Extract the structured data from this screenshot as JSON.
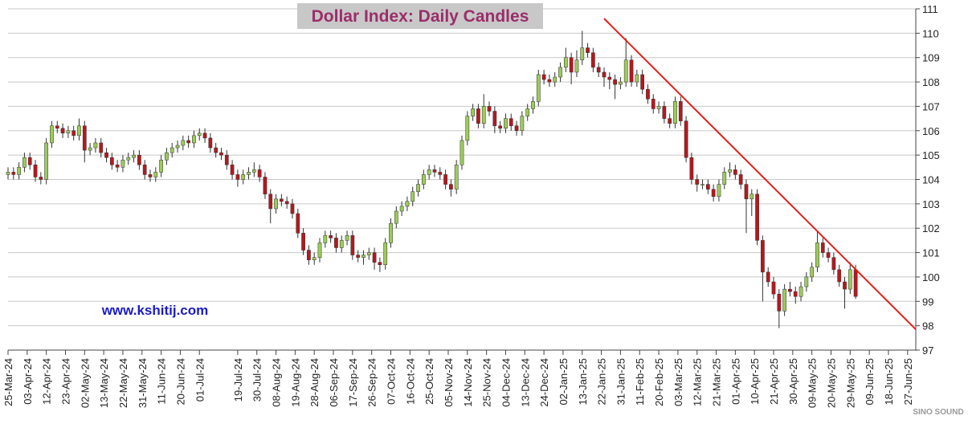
{
  "chart_data": {
    "type": "candlestick",
    "title": "Dollar Index: Daily Candles",
    "watermark": "www.kshitij.com",
    "logo": "SINO SOUND",
    "up_color": "#9ccc5a",
    "down_color": "#b5181e",
    "grid": true,
    "xlim": [
      0,
      332
    ],
    "ylim": [
      97,
      111
    ],
    "yticks": [
      97,
      98,
      99,
      100,
      101,
      102,
      103,
      104,
      105,
      106,
      107,
      108,
      109,
      110,
      111
    ],
    "xticks": [
      {
        "value": 0,
        "label": "25-Mar-24"
      },
      {
        "value": 7,
        "label": "03-Apr-24"
      },
      {
        "value": 14,
        "label": "12-Apr-24"
      },
      {
        "value": 21,
        "label": "23-Apr-24"
      },
      {
        "value": 28,
        "label": "02-May-24"
      },
      {
        "value": 35,
        "label": "13-May-24"
      },
      {
        "value": 42,
        "label": "22-May-24"
      },
      {
        "value": 49,
        "label": "31-May-24"
      },
      {
        "value": 56,
        "label": "11-Jun-24"
      },
      {
        "value": 63,
        "label": "20-Jun-24"
      },
      {
        "value": 70,
        "label": "01-Jul-24"
      },
      {
        "value": 84,
        "label": "19-Jul-24"
      },
      {
        "value": 91,
        "label": "30-Jul-24"
      },
      {
        "value": 98,
        "label": "08-Aug-24"
      },
      {
        "value": 105,
        "label": "19-Aug-24"
      },
      {
        "value": 112,
        "label": "28-Aug-24"
      },
      {
        "value": 119,
        "label": "06-Sep-24"
      },
      {
        "value": 126,
        "label": "17-Sep-24"
      },
      {
        "value": 133,
        "label": "26-Sep-24"
      },
      {
        "value": 140,
        "label": "07-Oct-24"
      },
      {
        "value": 147,
        "label": "16-Oct-24"
      },
      {
        "value": 154,
        "label": "25-Oct-24"
      },
      {
        "value": 161,
        "label": "05-Nov-24"
      },
      {
        "value": 168,
        "label": "14-Nov-24"
      },
      {
        "value": 175,
        "label": "25-Nov-24"
      },
      {
        "value": 182,
        "label": "04-Dec-24"
      },
      {
        "value": 189,
        "label": "13-Dec-24"
      },
      {
        "value": 196,
        "label": "24-Dec-24"
      },
      {
        "value": 203,
        "label": "02-Jan-25"
      },
      {
        "value": 210,
        "label": "13-Jan-25"
      },
      {
        "value": 217,
        "label": "22-Jan-25"
      },
      {
        "value": 224,
        "label": "31-Jan-25"
      },
      {
        "value": 231,
        "label": "11-Feb-25"
      },
      {
        "value": 238,
        "label": "20-Feb-25"
      },
      {
        "value": 245,
        "label": "03-Mar-25"
      },
      {
        "value": 252,
        "label": "12-Mar-25"
      },
      {
        "value": 259,
        "label": "21-Mar-25"
      },
      {
        "value": 266,
        "label": "01-Apr-25"
      },
      {
        "value": 273,
        "label": "10-Apr-25"
      },
      {
        "value": 280,
        "label": "21-Apr-25"
      },
      {
        "value": 287,
        "label": "30-Apr-25"
      },
      {
        "value": 294,
        "label": "09-May-25"
      },
      {
        "value": 301,
        "label": "20-May-25"
      },
      {
        "value": 308,
        "label": "29-May-25"
      },
      {
        "value": 315,
        "label": "09-Jun-25"
      },
      {
        "value": 322,
        "label": "18-Jun-25"
      },
      {
        "value": 329,
        "label": "27-Jun-25"
      }
    ],
    "trendline": {
      "x": [
        218,
        332
      ],
      "y": [
        110.6,
        97.85
      ],
      "color": "#e0201c"
    },
    "x": [
      0,
      2,
      4,
      6,
      8,
      10,
      12,
      14,
      16,
      18,
      20,
      22,
      24,
      26,
      28,
      30,
      32,
      34,
      36,
      38,
      40,
      42,
      44,
      46,
      48,
      50,
      52,
      54,
      56,
      58,
      60,
      62,
      64,
      66,
      68,
      70,
      72,
      74,
      76,
      78,
      80,
      82,
      84,
      86,
      88,
      90,
      92,
      94,
      96,
      98,
      100,
      102,
      104,
      106,
      108,
      110,
      112,
      114,
      116,
      118,
      120,
      122,
      124,
      126,
      128,
      130,
      132,
      134,
      136,
      138,
      140,
      142,
      144,
      146,
      148,
      150,
      152,
      154,
      156,
      158,
      160,
      162,
      164,
      166,
      168,
      170,
      172,
      174,
      176,
      178,
      180,
      182,
      184,
      186,
      188,
      190,
      192,
      194,
      196,
      198,
      200,
      202,
      204,
      206,
      208,
      210,
      212,
      214,
      216,
      218,
      220,
      222,
      224,
      226,
      228,
      230,
      232,
      234,
      236,
      238,
      240,
      242,
      244,
      246,
      248,
      250,
      252,
      254,
      256,
      258,
      260,
      262,
      264,
      266,
      268,
      270,
      272,
      274,
      276,
      278,
      280,
      282,
      284,
      286,
      288,
      290,
      292,
      294,
      296,
      298,
      300,
      302,
      304,
      306,
      308,
      310
    ],
    "open": [
      104.2,
      104.3,
      104.2,
      104.5,
      104.9,
      104.6,
      104.1,
      104.0,
      105.5,
      106.2,
      106.1,
      105.9,
      106.0,
      105.8,
      106.2,
      105.2,
      105.3,
      105.5,
      105.1,
      104.9,
      104.6,
      104.5,
      104.8,
      104.9,
      105.0,
      104.6,
      104.2,
      104.1,
      104.3,
      104.8,
      105.1,
      105.3,
      105.4,
      105.6,
      105.5,
      105.8,
      105.9,
      105.7,
      105.3,
      105.1,
      105.0,
      104.6,
      104.2,
      104.0,
      104.2,
      104.3,
      104.4,
      104.1,
      103.4,
      102.8,
      103.2,
      103.1,
      103.0,
      102.6,
      101.8,
      101.1,
      100.7,
      100.8,
      101.4,
      101.7,
      101.6,
      101.2,
      101.5,
      101.7,
      100.9,
      100.8,
      100.9,
      101.0,
      100.6,
      100.5,
      101.4,
      102.2,
      102.7,
      102.9,
      103.1,
      103.5,
      103.8,
      104.2,
      104.4,
      104.3,
      104.2,
      103.8,
      103.6,
      104.6,
      105.6,
      106.6,
      106.9,
      106.3,
      107.0,
      106.8,
      106.2,
      106.1,
      106.5,
      106.2,
      106.0,
      106.6,
      106.9,
      107.2,
      108.3,
      108.1,
      108.0,
      108.2,
      108.6,
      109.0,
      108.4,
      108.9,
      109.4,
      109.2,
      108.6,
      108.4,
      108.2,
      108.1,
      107.9,
      108.0,
      108.9,
      108.0,
      108.3,
      107.7,
      107.3,
      106.9,
      107.0,
      106.5,
      106.3,
      107.2,
      106.4,
      104.9,
      104.0,
      103.8,
      103.8,
      103.6,
      103.3,
      103.8,
      104.3,
      104.4,
      104.2,
      103.8,
      103.2,
      103.4,
      101.5,
      100.2,
      99.8,
      99.3,
      98.6,
      99.5,
      99.4,
      99.2,
      99.6,
      100.0,
      100.4,
      101.4,
      101.0,
      100.8,
      100.3,
      99.8,
      99.5,
      100.3
    ],
    "high": [
      104.5,
      104.5,
      104.7,
      105.1,
      105.1,
      104.8,
      104.3,
      105.7,
      106.4,
      106.4,
      106.3,
      106.2,
      106.2,
      106.5,
      106.4,
      105.5,
      105.7,
      105.7,
      105.3,
      105.1,
      104.8,
      105.0,
      105.1,
      105.2,
      105.2,
      104.8,
      104.4,
      104.5,
      105.0,
      105.3,
      105.5,
      105.6,
      105.8,
      105.8,
      106.0,
      106.1,
      106.1,
      105.9,
      105.5,
      105.3,
      105.2,
      104.8,
      104.4,
      104.4,
      104.5,
      104.7,
      104.6,
      104.3,
      103.6,
      103.4,
      103.4,
      103.3,
      103.2,
      102.8,
      102.0,
      101.3,
      101.0,
      101.6,
      101.9,
      101.9,
      101.8,
      101.7,
      101.9,
      101.9,
      101.1,
      101.1,
      101.2,
      101.2,
      100.8,
      101.6,
      102.4,
      102.9,
      103.1,
      103.3,
      103.7,
      104.0,
      104.4,
      104.6,
      104.6,
      104.5,
      104.4,
      104.0,
      104.8,
      105.8,
      106.8,
      107.1,
      107.1,
      107.5,
      107.2,
      107.0,
      106.4,
      106.7,
      106.7,
      106.4,
      106.8,
      107.1,
      107.4,
      108.5,
      108.5,
      108.3,
      108.4,
      108.8,
      109.4,
      109.2,
      109.3,
      110.1,
      109.6,
      109.4,
      108.8,
      108.6,
      108.4,
      108.3,
      108.2,
      109.8,
      109.1,
      108.5,
      108.5,
      107.9,
      107.5,
      107.2,
      107.2,
      106.7,
      107.4,
      107.4,
      106.6,
      105.1,
      104.2,
      104.0,
      104.0,
      103.8,
      104.0,
      104.5,
      104.7,
      104.6,
      104.4,
      104.0,
      103.6,
      103.6,
      101.7,
      100.4,
      100.0,
      99.5,
      99.7,
      99.8,
      99.6,
      99.8,
      100.2,
      100.6,
      101.9,
      101.6,
      101.2,
      101.0,
      100.5,
      100.0,
      100.6,
      100.5
    ],
    "low": [
      104.0,
      104.0,
      104.0,
      104.3,
      104.4,
      103.9,
      103.8,
      103.8,
      105.3,
      105.9,
      105.7,
      105.7,
      105.6,
      105.6,
      104.7,
      105.0,
      105.1,
      104.9,
      104.7,
      104.4,
      104.3,
      104.3,
      104.6,
      104.7,
      104.4,
      104.0,
      103.9,
      103.9,
      104.1,
      104.6,
      104.9,
      105.1,
      105.2,
      105.3,
      105.3,
      105.6,
      105.5,
      105.1,
      104.9,
      104.8,
      104.4,
      104.0,
      103.7,
      103.8,
      104.0,
      104.1,
      103.9,
      103.2,
      102.2,
      102.6,
      102.9,
      102.8,
      102.4,
      101.6,
      100.9,
      100.5,
      100.5,
      100.6,
      101.2,
      101.4,
      101.0,
      101.0,
      101.3,
      100.7,
      100.6,
      100.5,
      100.7,
      100.3,
      100.2,
      100.3,
      101.2,
      102.0,
      102.5,
      102.7,
      102.9,
      103.3,
      103.6,
      104.0,
      104.1,
      104.0,
      103.6,
      103.3,
      103.4,
      104.4,
      105.4,
      106.4,
      106.1,
      106.1,
      106.6,
      105.9,
      105.9,
      105.9,
      106.0,
      105.8,
      105.8,
      106.4,
      106.7,
      107.0,
      107.9,
      107.8,
      107.8,
      108.0,
      108.4,
      107.9,
      108.2,
      108.7,
      109.0,
      108.4,
      108.2,
      107.8,
      107.7,
      107.3,
      107.7,
      107.8,
      107.8,
      107.8,
      107.5,
      107.1,
      106.7,
      106.7,
      106.3,
      106.1,
      106.1,
      106.2,
      104.7,
      103.8,
      103.5,
      103.6,
      103.4,
      103.1,
      103.1,
      103.6,
      104.1,
      104.0,
      103.6,
      101.8,
      102.5,
      101.3,
      99.0,
      99.6,
      99.1,
      97.9,
      98.4,
      99.2,
      98.9,
      99.0,
      99.4,
      99.8,
      100.2,
      100.8,
      100.6,
      100.1,
      99.6,
      98.7,
      99.3,
      99.1
    ],
    "close": [
      104.3,
      104.2,
      104.5,
      104.9,
      104.6,
      104.1,
      104.0,
      105.5,
      106.2,
      106.1,
      105.9,
      106.0,
      105.8,
      106.2,
      105.2,
      105.3,
      105.5,
      105.1,
      104.9,
      104.6,
      104.5,
      104.8,
      104.9,
      105.0,
      104.6,
      104.2,
      104.1,
      104.3,
      104.8,
      105.1,
      105.3,
      105.4,
      105.6,
      105.5,
      105.8,
      105.9,
      105.7,
      105.3,
      105.1,
      105.0,
      104.6,
      104.2,
      104.0,
      104.2,
      104.3,
      104.4,
      104.1,
      103.4,
      102.8,
      103.2,
      103.1,
      103.0,
      102.6,
      101.8,
      101.1,
      100.7,
      100.8,
      101.4,
      101.7,
      101.6,
      101.2,
      101.5,
      101.7,
      100.9,
      100.8,
      100.9,
      101.0,
      100.6,
      100.5,
      101.4,
      102.2,
      102.7,
      102.9,
      103.1,
      103.5,
      103.8,
      104.2,
      104.4,
      104.3,
      104.2,
      103.8,
      103.6,
      104.6,
      105.6,
      106.6,
      106.9,
      106.3,
      107.0,
      106.8,
      106.2,
      106.1,
      106.5,
      106.2,
      106.0,
      106.6,
      106.9,
      107.2,
      108.3,
      108.1,
      108.0,
      108.2,
      108.6,
      109.0,
      108.4,
      108.9,
      109.4,
      109.2,
      108.6,
      108.4,
      108.2,
      108.1,
      107.9,
      108.0,
      108.9,
      108.0,
      108.3,
      107.7,
      107.3,
      106.9,
      107.0,
      106.5,
      106.3,
      107.2,
      106.4,
      104.9,
      104.0,
      103.8,
      103.8,
      103.6,
      103.3,
      103.8,
      104.3,
      104.4,
      104.2,
      103.8,
      103.2,
      103.4,
      101.5,
      100.2,
      99.8,
      99.3,
      98.6,
      99.5,
      99.4,
      99.2,
      99.6,
      100.0,
      100.4,
      101.4,
      101.0,
      100.8,
      100.3,
      99.8,
      99.5,
      100.3,
      99.2
    ]
  }
}
